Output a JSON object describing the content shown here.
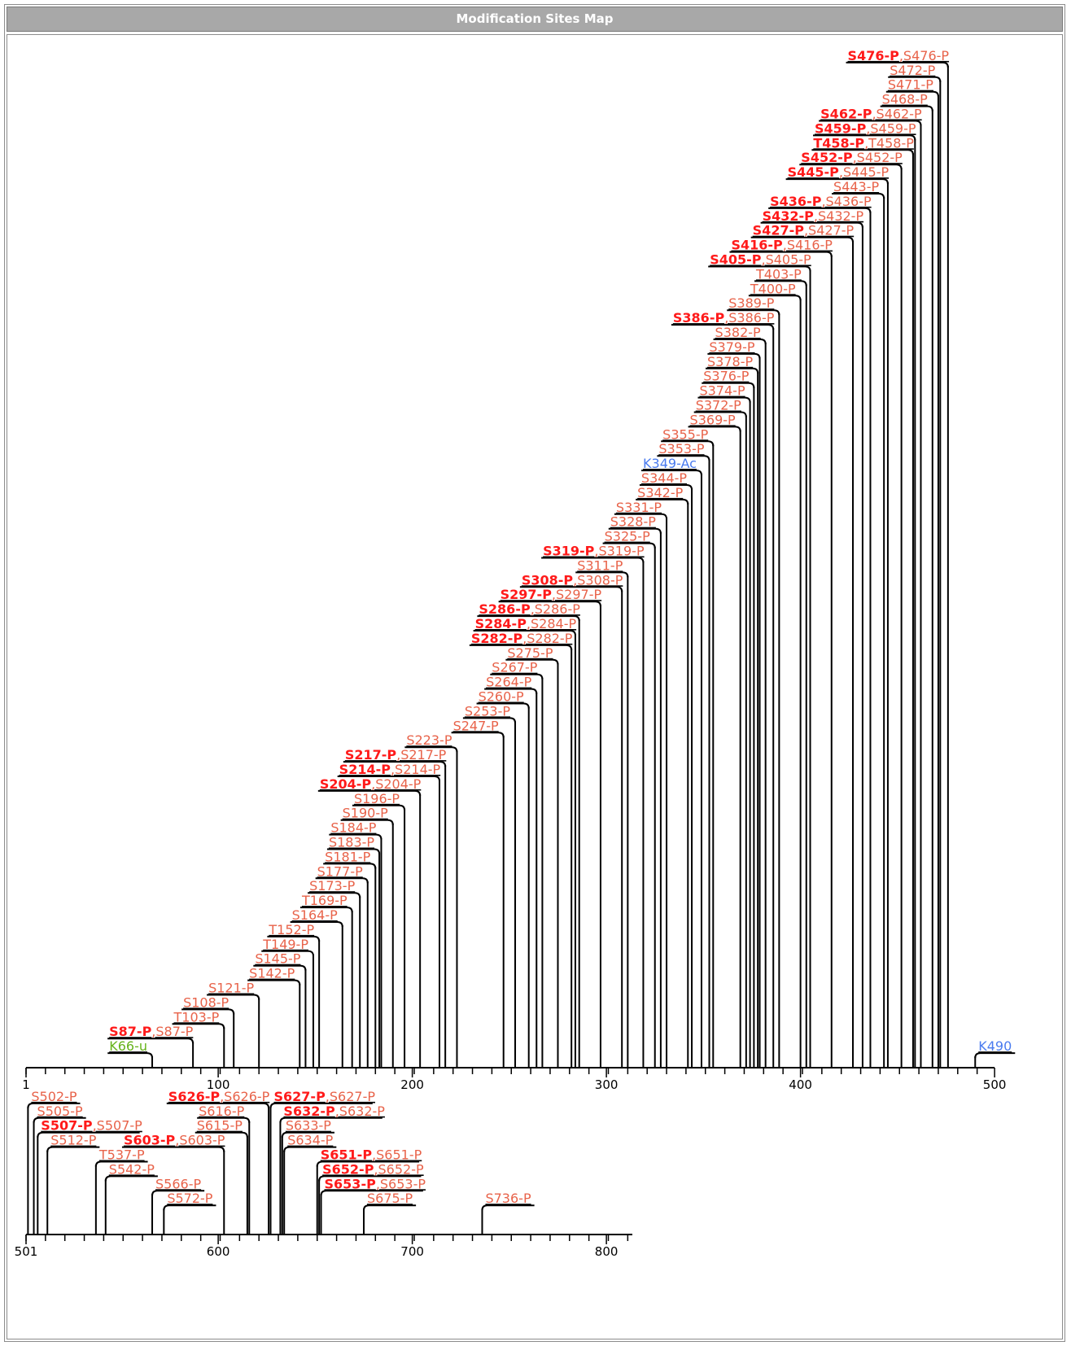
{
  "title": "Modification Sites Map",
  "colors": {
    "primary_site": "#ff1a1a",
    "secondary_site": "#e8634a",
    "acetylation": "#4a7bef",
    "ubiquitination": "#66b31a",
    "line": "#000000"
  },
  "rows": [
    {
      "start": 1,
      "end": 500,
      "tick_labels": [
        "1",
        "100",
        "200",
        "300",
        "400",
        "500"
      ],
      "sites": [
        {
          "pos": 66,
          "label": "K66-u",
          "type": "ubiquitination"
        },
        {
          "pos": 87,
          "label": "S87-P",
          "extra": "S87-P"
        },
        {
          "pos": 103,
          "label": "T103-P"
        },
        {
          "pos": 108,
          "label": "S108-P"
        },
        {
          "pos": 121,
          "label": "S121-P"
        },
        {
          "pos": 142,
          "label": "S142-P"
        },
        {
          "pos": 145,
          "label": "S145-P"
        },
        {
          "pos": 149,
          "label": "T149-P"
        },
        {
          "pos": 152,
          "label": "T152-P"
        },
        {
          "pos": 164,
          "label": "S164-P"
        },
        {
          "pos": 169,
          "label": "T169-P"
        },
        {
          "pos": 173,
          "label": "S173-P"
        },
        {
          "pos": 177,
          "label": "S177-P"
        },
        {
          "pos": 181,
          "label": "S181-P"
        },
        {
          "pos": 183,
          "label": "S183-P"
        },
        {
          "pos": 184,
          "label": "S184-P"
        },
        {
          "pos": 190,
          "label": "S190-P"
        },
        {
          "pos": 196,
          "label": "S196-P"
        },
        {
          "pos": 204,
          "label": "S204-P",
          "extra": "S204-P"
        },
        {
          "pos": 214,
          "label": "S214-P",
          "extra": "S214-P"
        },
        {
          "pos": 217,
          "label": "S217-P",
          "extra": "S217-P"
        },
        {
          "pos": 223,
          "label": "S223-P"
        },
        {
          "pos": 247,
          "label": "S247-P"
        },
        {
          "pos": 253,
          "label": "S253-P"
        },
        {
          "pos": 260,
          "label": "S260-P"
        },
        {
          "pos": 264,
          "label": "S264-P"
        },
        {
          "pos": 267,
          "label": "S267-P"
        },
        {
          "pos": 275,
          "label": "S275-P"
        },
        {
          "pos": 282,
          "label": "S282-P",
          "extra": "S282-P"
        },
        {
          "pos": 284,
          "label": "S284-P",
          "extra": "S284-P"
        },
        {
          "pos": 286,
          "label": "S286-P",
          "extra": "S286-P"
        },
        {
          "pos": 297,
          "label": "S297-P",
          "extra": "S297-P"
        },
        {
          "pos": 308,
          "label": "S308-P",
          "extra": "S308-P"
        },
        {
          "pos": 311,
          "label": "S311-P"
        },
        {
          "pos": 319,
          "label": "S319-P",
          "extra": "S319-P"
        },
        {
          "pos": 325,
          "label": "S325-P"
        },
        {
          "pos": 328,
          "label": "S328-P"
        },
        {
          "pos": 331,
          "label": "S331-P"
        },
        {
          "pos": 342,
          "label": "S342-P"
        },
        {
          "pos": 344,
          "label": "S344-P"
        },
        {
          "pos": 349,
          "label": "K349-Ac",
          "type": "acetylation"
        },
        {
          "pos": 353,
          "label": "S353-P"
        },
        {
          "pos": 355,
          "label": "S355-P"
        },
        {
          "pos": 369,
          "label": "S369-P"
        },
        {
          "pos": 372,
          "label": "S372-P"
        },
        {
          "pos": 374,
          "label": "S374-P"
        },
        {
          "pos": 376,
          "label": "S376-P"
        },
        {
          "pos": 378,
          "label": "S378-P"
        },
        {
          "pos": 379,
          "label": "S379-P"
        },
        {
          "pos": 382,
          "label": "S382-P"
        },
        {
          "pos": 386,
          "label": "S386-P",
          "extra": "S386-P"
        },
        {
          "pos": 389,
          "label": "S389-P"
        },
        {
          "pos": 400,
          "label": "T400-P"
        },
        {
          "pos": 403,
          "label": "T403-P"
        },
        {
          "pos": 405,
          "label": "S405-P",
          "extra": "S405-P"
        },
        {
          "pos": 416,
          "label": "S416-P",
          "extra": "S416-P"
        },
        {
          "pos": 427,
          "label": "S427-P",
          "extra": "S427-P"
        },
        {
          "pos": 432,
          "label": "S432-P",
          "extra": "S432-P"
        },
        {
          "pos": 436,
          "label": "S436-P",
          "extra": "S436-P"
        },
        {
          "pos": 443,
          "label": "S443-P"
        },
        {
          "pos": 445,
          "label": "S445-P",
          "extra": "S445-P"
        },
        {
          "pos": 452,
          "label": "S452-P",
          "extra": "S452-P"
        },
        {
          "pos": 458,
          "label": "T458-P",
          "extra": "T458-P"
        },
        {
          "pos": 459,
          "label": "S459-P",
          "extra": "S459-P"
        },
        {
          "pos": 462,
          "label": "S462-P",
          "extra": "S462-P"
        },
        {
          "pos": 468,
          "label": "S468-P"
        },
        {
          "pos": 471,
          "label": "S471-P"
        },
        {
          "pos": 472,
          "label": "S472-P"
        },
        {
          "pos": 476,
          "label": "S476-P",
          "extra": "S476-P"
        },
        {
          "pos": 490,
          "label": "K490",
          "type": "acetylation",
          "anchor": "right"
        }
      ]
    },
    {
      "start": 501,
      "end": 816,
      "tick_labels": [
        "501",
        "600",
        "700",
        "800"
      ],
      "sites": [
        {
          "pos": 502,
          "label": "S502-P",
          "anchor": "right"
        },
        {
          "pos": 505,
          "label": "S505-P",
          "anchor": "right"
        },
        {
          "pos": 507,
          "label": "S507-P",
          "extra": "S507-P",
          "anchor": "right"
        },
        {
          "pos": 512,
          "label": "S512-P",
          "anchor": "right"
        },
        {
          "pos": 537,
          "label": "T537-P",
          "anchor": "right"
        },
        {
          "pos": 542,
          "label": "S542-P",
          "anchor": "right"
        },
        {
          "pos": 566,
          "label": "S566-P",
          "anchor": "right"
        },
        {
          "pos": 572,
          "label": "S572-P",
          "anchor": "right"
        },
        {
          "pos": 603,
          "label": "S603-P",
          "extra": "S603-P"
        },
        {
          "pos": 615,
          "label": "S615-P"
        },
        {
          "pos": 616,
          "label": "S616-P"
        },
        {
          "pos": 626,
          "label": "S626-P",
          "extra": "S626-P"
        },
        {
          "pos": 627,
          "label": "S627-P",
          "extra": "S627-P",
          "anchor": "right"
        },
        {
          "pos": 632,
          "label": "S632-P",
          "extra": "S632-P",
          "anchor": "right"
        },
        {
          "pos": 633,
          "label": "S633-P",
          "anchor": "right"
        },
        {
          "pos": 634,
          "label": "S634-P",
          "anchor": "right"
        },
        {
          "pos": 651,
          "label": "S651-P",
          "extra": "S651-P",
          "anchor": "right"
        },
        {
          "pos": 652,
          "label": "S652-P",
          "extra": "S652-P",
          "anchor": "right"
        },
        {
          "pos": 653,
          "label": "S653-P",
          "extra": "S653-P",
          "anchor": "right"
        },
        {
          "pos": 675,
          "label": "S675-P",
          "anchor": "right"
        },
        {
          "pos": 736,
          "label": "S736-P",
          "anchor": "right"
        }
      ]
    }
  ]
}
